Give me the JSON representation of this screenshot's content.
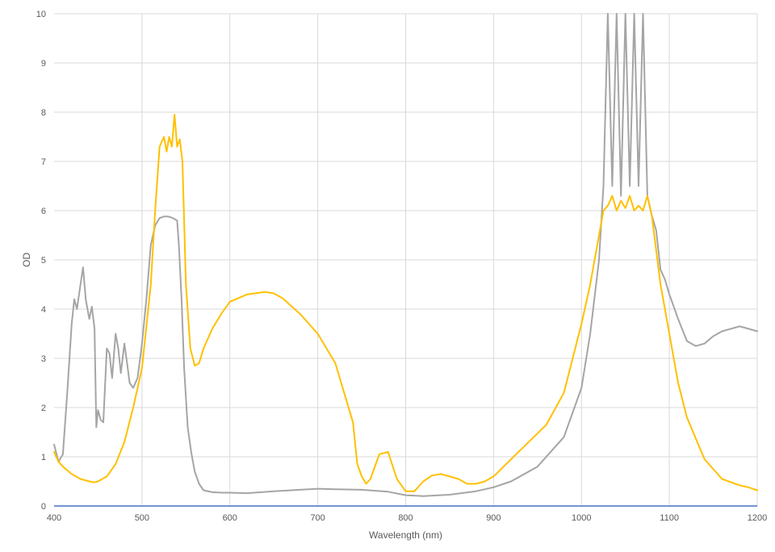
{
  "chart_data": {
    "type": "line",
    "title": "",
    "xlabel": "Wavelength (nm)",
    "ylabel": "OD",
    "xlim": [
      400,
      1200
    ],
    "ylim": [
      0,
      10
    ],
    "xticks": [
      "400",
      "500",
      "600",
      "700",
      "800",
      "900",
      "1000",
      "1100",
      "1200"
    ],
    "yticks": [
      "0",
      "1",
      "2",
      "3",
      "4",
      "5",
      "6",
      "7",
      "8",
      "9",
      "10"
    ],
    "grid": true,
    "legend": "none",
    "series": [
      {
        "color": "#a5a5a5",
        "x": [
          400,
          405,
          410,
          415,
          420,
          423,
          426,
          430,
          433,
          436,
          440,
          443,
          446,
          448,
          450,
          453,
          456,
          460,
          463,
          466,
          470,
          473,
          476,
          480,
          483,
          486,
          490,
          495,
          500,
          505,
          510,
          515,
          520,
          525,
          530,
          535,
          540,
          542,
          545,
          548,
          552,
          556,
          560,
          565,
          570,
          580,
          590,
          600,
          620,
          650,
          680,
          700,
          720,
          750,
          780,
          800,
          820,
          850,
          880,
          900,
          920,
          950,
          980,
          1000,
          1010,
          1020,
          1025,
          1030,
          1035,
          1040,
          1045,
          1050,
          1055,
          1060,
          1065,
          1070,
          1075,
          1080,
          1085,
          1090,
          1095,
          1100,
          1110,
          1120,
          1130,
          1140,
          1150,
          1160,
          1170,
          1180,
          1190,
          1200
        ],
        "y": [
          1.25,
          0.9,
          1.05,
          2.3,
          3.7,
          4.2,
          4.0,
          4.5,
          4.85,
          4.2,
          3.8,
          4.05,
          3.6,
          1.6,
          1.95,
          1.75,
          1.7,
          3.2,
          3.1,
          2.6,
          3.5,
          3.2,
          2.7,
          3.3,
          2.9,
          2.5,
          2.4,
          2.6,
          3.3,
          4.2,
          5.3,
          5.7,
          5.85,
          5.88,
          5.88,
          5.85,
          5.8,
          5.3,
          4.2,
          2.8,
          1.6,
          1.1,
          0.7,
          0.45,
          0.32,
          0.28,
          0.27,
          0.27,
          0.26,
          0.3,
          0.33,
          0.35,
          0.34,
          0.33,
          0.29,
          0.22,
          0.2,
          0.23,
          0.3,
          0.38,
          0.5,
          0.8,
          1.4,
          2.4,
          3.5,
          5.0,
          6.5,
          10,
          6.5,
          10,
          6.3,
          10,
          6.5,
          10,
          6.5,
          10,
          6.3,
          5.9,
          5.6,
          4.8,
          4.6,
          4.3,
          3.8,
          3.35,
          3.25,
          3.3,
          3.45,
          3.55,
          3.6,
          3.65,
          3.6,
          3.55
        ]
      },
      {
        "color": "#ffc000",
        "x": [
          400,
          405,
          410,
          420,
          430,
          440,
          445,
          450,
          460,
          470,
          480,
          490,
          500,
          510,
          515,
          520,
          525,
          528,
          531,
          534,
          537,
          540,
          543,
          546,
          550,
          555,
          560,
          565,
          570,
          580,
          590,
          600,
          620,
          640,
          650,
          660,
          680,
          700,
          720,
          740,
          745,
          750,
          755,
          760,
          770,
          780,
          790,
          800,
          810,
          820,
          830,
          840,
          850,
          860,
          870,
          880,
          890,
          900,
          920,
          940,
          960,
          980,
          1000,
          1010,
          1020,
          1025,
          1030,
          1035,
          1040,
          1045,
          1050,
          1055,
          1060,
          1065,
          1070,
          1075,
          1080,
          1090,
          1100,
          1110,
          1120,
          1140,
          1160,
          1180,
          1190,
          1200
        ],
        "y": [
          1.1,
          0.9,
          0.8,
          0.65,
          0.55,
          0.5,
          0.48,
          0.5,
          0.6,
          0.85,
          1.3,
          2.0,
          2.8,
          4.5,
          6.0,
          7.3,
          7.5,
          7.2,
          7.5,
          7.3,
          7.95,
          7.3,
          7.45,
          7.0,
          4.5,
          3.2,
          2.85,
          2.9,
          3.2,
          3.6,
          3.9,
          4.15,
          4.3,
          4.35,
          4.32,
          4.22,
          3.9,
          3.5,
          2.9,
          1.7,
          0.85,
          0.6,
          0.45,
          0.55,
          1.05,
          1.1,
          0.55,
          0.3,
          0.3,
          0.5,
          0.62,
          0.65,
          0.6,
          0.55,
          0.45,
          0.45,
          0.5,
          0.6,
          0.95,
          1.3,
          1.65,
          2.3,
          3.7,
          4.5,
          5.5,
          6.0,
          6.1,
          6.3,
          6.0,
          6.2,
          6.05,
          6.3,
          6.0,
          6.1,
          6.0,
          6.3,
          5.9,
          4.5,
          3.5,
          2.5,
          1.8,
          0.95,
          0.55,
          0.42,
          0.38,
          0.32
        ]
      }
    ],
    "zero_line_color": "#4472c4"
  }
}
